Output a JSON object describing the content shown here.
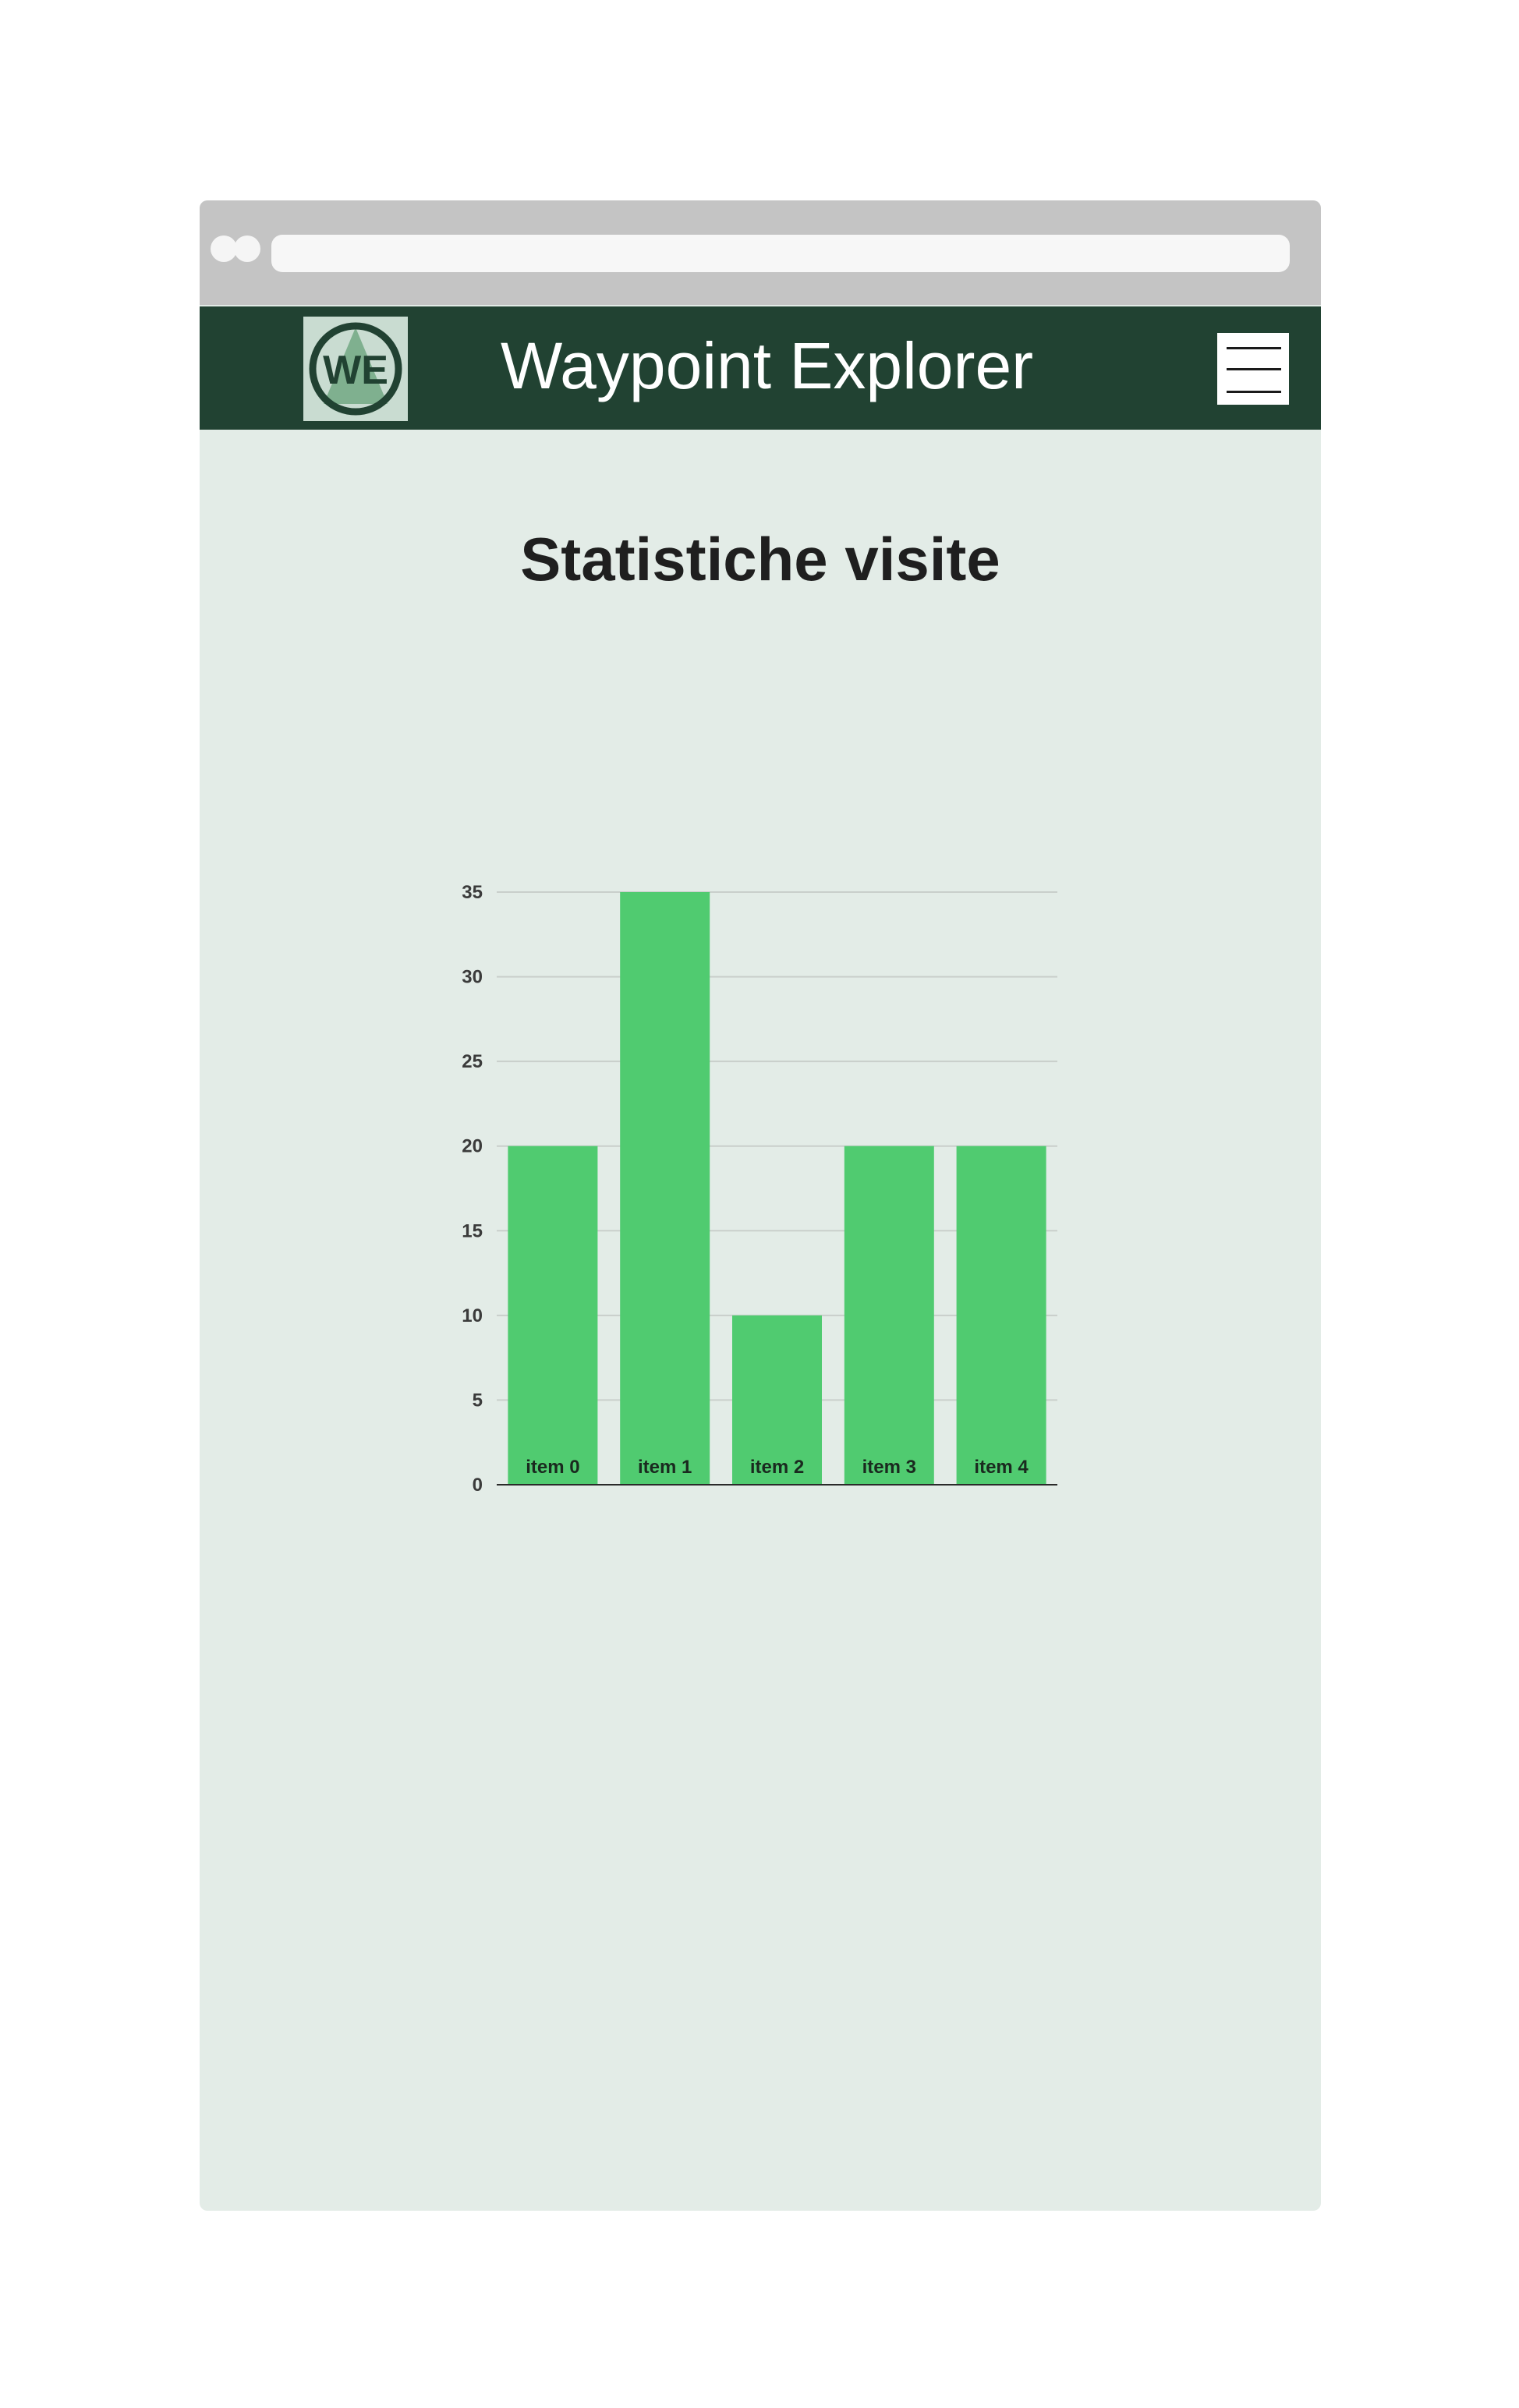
{
  "colors": {
    "header_bg": "#214232",
    "content_bg": "#e3ece7",
    "bar": "#50cb70",
    "browser_chrome": "#c4c4c4"
  },
  "browser": {
    "url": ""
  },
  "header": {
    "logo_text": "WE",
    "title": "Waypoint Explorer",
    "menu_icon": "hamburger-menu-icon"
  },
  "main": {
    "heading": "Statistiche visite"
  },
  "chart_data": {
    "type": "bar",
    "title": "",
    "xlabel": "",
    "ylabel": "",
    "categories": [
      "item 0",
      "item 1",
      "item 2",
      "item 3",
      "item 4"
    ],
    "values": [
      20,
      35,
      10,
      20,
      20
    ],
    "ylim": [
      0,
      35
    ],
    "yticks": [
      0,
      5,
      10,
      15,
      20,
      25,
      30,
      35
    ],
    "grid": true,
    "bar_color": "#50cb70"
  }
}
